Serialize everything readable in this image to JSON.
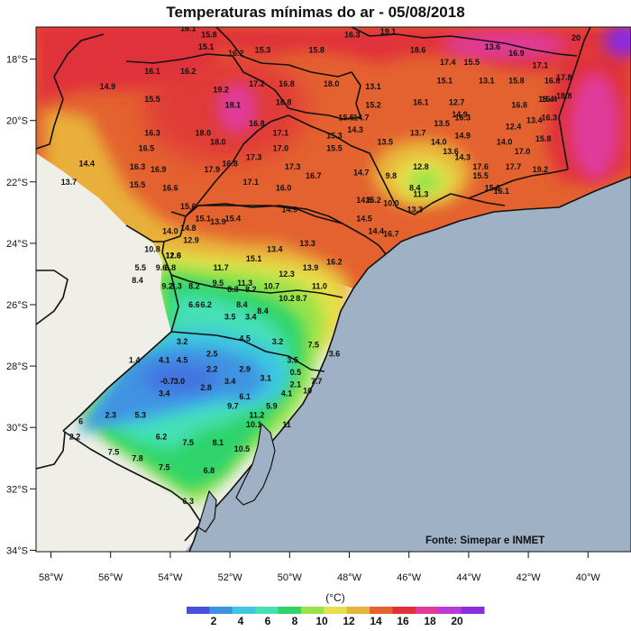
{
  "title": "Temperaturas mínimas do ar - 05/08/2018",
  "credit": "Fonte: Simepar e INMET",
  "unit": "(°C)",
  "colors": {
    "ocean": "#9fb1c5",
    "land_outside": "#efefe8",
    "border": "#111111"
  },
  "x_axis": {
    "ticks": [
      "58°W",
      "56°W",
      "54°W",
      "52°W",
      "50°W",
      "48°W",
      "46°W",
      "44°W",
      "42°W",
      "40°W"
    ]
  },
  "y_axis": {
    "ticks": [
      "18°S",
      "20°S",
      "22°S",
      "24°S",
      "26°S",
      "28°S",
      "30°S",
      "32°S",
      "34°S"
    ]
  },
  "colorbar": {
    "labels": [
      "2",
      "4",
      "6",
      "8",
      "10",
      "12",
      "14",
      "16",
      "18",
      "20"
    ],
    "colors": [
      "#4a4ee0",
      "#3f92e2",
      "#3ec6e2",
      "#45e0b5",
      "#2ed46a",
      "#98e34a",
      "#e6e04a",
      "#e9b43a",
      "#e4622f",
      "#e0303a",
      "#e03a9a",
      "#b93ad6",
      "#8a2ce0"
    ]
  },
  "stations": [
    {
      "v": "16.1",
      "lon": -53.4,
      "lat": -17.0
    },
    {
      "v": "15.8",
      "lon": -52.7,
      "lat": -17.2
    },
    {
      "v": "15.1",
      "lon": -52.8,
      "lat": -17.6
    },
    {
      "v": "16.2",
      "lon": -51.8,
      "lat": -17.8
    },
    {
      "v": "15.3",
      "lon": -50.9,
      "lat": -17.7
    },
    {
      "v": "15.8",
      "lon": -49.1,
      "lat": -17.7
    },
    {
      "v": "16.3",
      "lon": -47.9,
      "lat": -17.2
    },
    {
      "v": "19.1",
      "lon": -46.7,
      "lat": -17.1
    },
    {
      "v": "18.6",
      "lon": -45.7,
      "lat": -17.7
    },
    {
      "v": "13.6",
      "lon": -43.2,
      "lat": -17.6
    },
    {
      "v": "16.9",
      "lon": -42.4,
      "lat": -17.8
    },
    {
      "v": "20",
      "lon": -40.4,
      "lat": -17.3
    },
    {
      "v": "17.4",
      "lon": -44.7,
      "lat": -18.1
    },
    {
      "v": "15.5",
      "lon": -43.9,
      "lat": -18.1
    },
    {
      "v": "17.1",
      "lon": -41.6,
      "lat": -18.2
    },
    {
      "v": "16.1",
      "lon": -54.6,
      "lat": -18.4
    },
    {
      "v": "16.2",
      "lon": -53.4,
      "lat": -18.4
    },
    {
      "v": "17.2",
      "lon": -51.1,
      "lat": -18.8
    },
    {
      "v": "16.8",
      "lon": -50.1,
      "lat": -18.8
    },
    {
      "v": "18.0",
      "lon": -48.6,
      "lat": -18.8
    },
    {
      "v": "13.1",
      "lon": -47.2,
      "lat": -18.9
    },
    {
      "v": "15.1",
      "lon": -44.8,
      "lat": -18.7
    },
    {
      "v": "13.1",
      "lon": -43.4,
      "lat": -18.7
    },
    {
      "v": "15.8",
      "lon": -42.4,
      "lat": -18.7
    },
    {
      "v": "16.8",
      "lon": -41.2,
      "lat": -18.7
    },
    {
      "v": "17.8",
      "lon": -40.8,
      "lat": -18.6
    },
    {
      "v": "14.9",
      "lon": -56.1,
      "lat": -18.9
    },
    {
      "v": "19.2",
      "lon": -52.3,
      "lat": -19.0
    },
    {
      "v": "16.4",
      "lon": -41.3,
      "lat": -19.3
    },
    {
      "v": "18.8",
      "lon": -40.8,
      "lat": -19.2
    },
    {
      "v": "15.5",
      "lon": -54.6,
      "lat": -19.3
    },
    {
      "v": "18.1",
      "lon": -51.9,
      "lat": -19.5
    },
    {
      "v": "16.8",
      "lon": -50.2,
      "lat": -19.4
    },
    {
      "v": "15.2",
      "lon": -47.2,
      "lat": -19.5
    },
    {
      "v": "16.1",
      "lon": -45.6,
      "lat": -19.4
    },
    {
      "v": "12.7",
      "lon": -44.4,
      "lat": -19.4
    },
    {
      "v": "16.8",
      "lon": -42.3,
      "lat": -19.5
    },
    {
      "v": "18.4",
      "lon": -41.4,
      "lat": -19.3
    },
    {
      "v": "14.7",
      "lon": -47.6,
      "lat": -19.9
    },
    {
      "v": "15.5",
      "lon": -48.1,
      "lat": -19.9
    },
    {
      "v": "14.9",
      "lon": -44.3,
      "lat": -19.8
    },
    {
      "v": "16.3",
      "lon": -44.2,
      "lat": -19.9
    },
    {
      "v": "16.3",
      "lon": -41.3,
      "lat": -19.9
    },
    {
      "v": "16.8",
      "lon": -51.1,
      "lat": -20.1
    },
    {
      "v": "13.5",
      "lon": -44.9,
      "lat": -20.1
    },
    {
      "v": "12.4",
      "lon": -42.5,
      "lat": -20.2
    },
    {
      "v": "13.4",
      "lon": -41.8,
      "lat": -20.0
    },
    {
      "v": "14.3",
      "lon": -47.8,
      "lat": -20.3
    },
    {
      "v": "16.3",
      "lon": -54.6,
      "lat": -20.4
    },
    {
      "v": "18.0",
      "lon": -52.9,
      "lat": -20.4
    },
    {
      "v": "17.1",
      "lon": -50.3,
      "lat": -20.4
    },
    {
      "v": "15.3",
      "lon": -48.5,
      "lat": -20.5
    },
    {
      "v": "13.7",
      "lon": -45.7,
      "lat": -20.4
    },
    {
      "v": "14.9",
      "lon": -44.2,
      "lat": -20.5
    },
    {
      "v": "15.8",
      "lon": -41.5,
      "lat": -20.6
    },
    {
      "v": "18.0",
      "lon": -52.4,
      "lat": -20.7
    },
    {
      "v": "13.5",
      "lon": -46.8,
      "lat": -20.7
    },
    {
      "v": "14.0",
      "lon": -45.0,
      "lat": -20.7
    },
    {
      "v": "14.0",
      "lon": -42.8,
      "lat": -20.7
    },
    {
      "v": "16.5",
      "lon": -54.8,
      "lat": -20.9
    },
    {
      "v": "17.0",
      "lon": -50.3,
      "lat": -20.9
    },
    {
      "v": "15.5",
      "lon": -48.5,
      "lat": -20.9
    },
    {
      "v": "13.6",
      "lon": -44.6,
      "lat": -21.0
    },
    {
      "v": "17.0",
      "lon": -42.2,
      "lat": -21.0
    },
    {
      "v": "17.3",
      "lon": -51.2,
      "lat": -21.2
    },
    {
      "v": "14.3",
      "lon": -44.2,
      "lat": -21.2
    },
    {
      "v": "14.4",
      "lon": -56.8,
      "lat": -21.4
    },
    {
      "v": "16.3",
      "lon": -55.1,
      "lat": -21.5
    },
    {
      "v": "16.8",
      "lon": -52.0,
      "lat": -21.4
    },
    {
      "v": "17.3",
      "lon": -49.9,
      "lat": -21.5
    },
    {
      "v": "12.8",
      "lon": -45.6,
      "lat": -21.5
    },
    {
      "v": "17.6",
      "lon": -43.6,
      "lat": -21.5
    },
    {
      "v": "17.7",
      "lon": -42.5,
      "lat": -21.5
    },
    {
      "v": "19.2",
      "lon": -41.6,
      "lat": -21.6
    },
    {
      "v": "16.9",
      "lon": -54.4,
      "lat": -21.6
    },
    {
      "v": "17.9",
      "lon": -52.6,
      "lat": -21.6
    },
    {
      "v": "16.7",
      "lon": -49.2,
      "lat": -21.8
    },
    {
      "v": "14.7",
      "lon": -47.6,
      "lat": -21.7
    },
    {
      "v": "9.8",
      "lon": -46.6,
      "lat": -21.8
    },
    {
      "v": "15.5",
      "lon": -43.6,
      "lat": -21.8
    },
    {
      "v": "13.7",
      "lon": -57.4,
      "lat": -22.0
    },
    {
      "v": "17.1",
      "lon": -51.3,
      "lat": -22.0
    },
    {
      "v": "15.5",
      "lon": -55.1,
      "lat": -22.1
    },
    {
      "v": "16.6",
      "lon": -54.0,
      "lat": -22.2
    },
    {
      "v": "16.0",
      "lon": -50.2,
      "lat": -22.2
    },
    {
      "v": "8.4",
      "lon": -45.8,
      "lat": -22.2
    },
    {
      "v": "15.6",
      "lon": -43.2,
      "lat": -22.2
    },
    {
      "v": "16.1",
      "lon": -42.9,
      "lat": -22.3
    },
    {
      "v": "14.8",
      "lon": -47.5,
      "lat": -22.6
    },
    {
      "v": "15.2",
      "lon": -47.2,
      "lat": -22.6
    },
    {
      "v": "10.0",
      "lon": -46.6,
      "lat": -22.7
    },
    {
      "v": "11.3",
      "lon": -45.6,
      "lat": -22.4
    },
    {
      "v": "15.6",
      "lon": -53.4,
      "lat": -22.8
    },
    {
      "v": "15.1",
      "lon": -52.9,
      "lat": -23.2
    },
    {
      "v": "14.9",
      "lon": -50.0,
      "lat": -22.9
    },
    {
      "v": "13.3",
      "lon": -45.8,
      "lat": -22.9
    },
    {
      "v": "15.4",
      "lon": -51.9,
      "lat": -23.2
    },
    {
      "v": "13.9",
      "lon": -52.4,
      "lat": -23.3
    },
    {
      "v": "14.5",
      "lon": -47.5,
      "lat": -23.2
    },
    {
      "v": "14.4",
      "lon": -47.1,
      "lat": -23.6
    },
    {
      "v": "16.7",
      "lon": -46.6,
      "lat": -23.7
    },
    {
      "v": "14.0",
      "lon": -54.0,
      "lat": -23.6
    },
    {
      "v": "14.8",
      "lon": -53.4,
      "lat": -23.5
    },
    {
      "v": "12.9",
      "lon": -53.3,
      "lat": -23.9
    },
    {
      "v": "13.4",
      "lon": -50.5,
      "lat": -24.2
    },
    {
      "v": "13.3",
      "lon": -49.4,
      "lat": -24.0
    },
    {
      "v": "10.8",
      "lon": -54.6,
      "lat": -24.2
    },
    {
      "v": "11.0",
      "lon": -53.9,
      "lat": -24.4
    },
    {
      "v": "12.6",
      "lon": -53.9,
      "lat": -24.4
    },
    {
      "v": "15.1",
      "lon": -51.2,
      "lat": -24.5
    },
    {
      "v": "16.2",
      "lon": -48.5,
      "lat": -24.6
    },
    {
      "v": "9.6",
      "lon": -54.3,
      "lat": -24.8
    },
    {
      "v": "5.5",
      "lon": -55.0,
      "lat": -24.8
    },
    {
      "v": "6.8",
      "lon": -54.0,
      "lat": -24.8
    },
    {
      "v": "11.7",
      "lon": -52.3,
      "lat": -24.8
    },
    {
      "v": "12.3",
      "lon": -50.1,
      "lat": -25.0
    },
    {
      "v": "13.9",
      "lon": -49.3,
      "lat": -24.8
    },
    {
      "v": "8.4",
      "lon": -55.1,
      "lat": -25.2
    },
    {
      "v": "9.2",
      "lon": -54.1,
      "lat": -25.4
    },
    {
      "v": "3.3",
      "lon": -53.8,
      "lat": -25.4
    },
    {
      "v": "8.2",
      "lon": -53.2,
      "lat": -25.4
    },
    {
      "v": "9.5",
      "lon": -52.4,
      "lat": -25.3
    },
    {
      "v": "11.3",
      "lon": -51.5,
      "lat": -25.3
    },
    {
      "v": "10.7",
      "lon": -50.6,
      "lat": -25.4
    },
    {
      "v": "11.0",
      "lon": -49.0,
      "lat": -25.4
    },
    {
      "v": "8.3",
      "lon": -51.9,
      "lat": -25.5
    },
    {
      "v": "8.2",
      "lon": -51.3,
      "lat": -25.5
    },
    {
      "v": "10.2",
      "lon": -50.1,
      "lat": -25.8
    },
    {
      "v": "8.7",
      "lon": -49.6,
      "lat": -25.8
    },
    {
      "v": "6.6",
      "lon": -53.2,
      "lat": -26.0
    },
    {
      "v": "6.2",
      "lon": -52.8,
      "lat": -26.0
    },
    {
      "v": "8.4",
      "lon": -51.6,
      "lat": -26.0
    },
    {
      "v": "8.4",
      "lon": -50.9,
      "lat": -26.2
    },
    {
      "v": "3.5",
      "lon": -52.0,
      "lat": -26.4
    },
    {
      "v": "3.4",
      "lon": -51.3,
      "lat": -26.4
    },
    {
      "v": "4.5",
      "lon": -51.5,
      "lat": -27.1
    },
    {
      "v": "3.2",
      "lon": -53.6,
      "lat": -27.2
    },
    {
      "v": "3.2",
      "lon": -50.4,
      "lat": -27.2
    },
    {
      "v": "7.5",
      "lon": -49.2,
      "lat": -27.3
    },
    {
      "v": "2.5",
      "lon": -52.6,
      "lat": -27.6
    },
    {
      "v": "3.6",
      "lon": -48.5,
      "lat": -27.6
    },
    {
      "v": "1.4",
      "lon": -55.2,
      "lat": -27.8
    },
    {
      "v": "4.1",
      "lon": -54.2,
      "lat": -27.8
    },
    {
      "v": "4.5",
      "lon": -53.6,
      "lat": -27.8
    },
    {
      "v": "3.5",
      "lon": -49.9,
      "lat": -27.8
    },
    {
      "v": "2.2",
      "lon": -52.6,
      "lat": -28.1
    },
    {
      "v": "2.9",
      "lon": -51.5,
      "lat": -28.1
    },
    {
      "v": "0.5",
      "lon": -49.8,
      "lat": -28.2
    },
    {
      "v": "-0.7",
      "lon": -54.1,
      "lat": -28.5
    },
    {
      "v": "3.0",
      "lon": -53.7,
      "lat": -28.5
    },
    {
      "v": "3.4",
      "lon": -52.0,
      "lat": -28.5
    },
    {
      "v": "3.1",
      "lon": -50.8,
      "lat": -28.4
    },
    {
      "v": "7.7",
      "lon": -49.1,
      "lat": -28.5
    },
    {
      "v": "2.8",
      "lon": -52.8,
      "lat": -28.7
    },
    {
      "v": "2.1",
      "lon": -49.8,
      "lat": -28.6
    },
    {
      "v": "10",
      "lon": -49.4,
      "lat": -28.8
    },
    {
      "v": "3.4",
      "lon": -54.2,
      "lat": -28.9
    },
    {
      "v": "6.1",
      "lon": -51.5,
      "lat": -29.0
    },
    {
      "v": "4.1",
      "lon": -50.1,
      "lat": -28.9
    },
    {
      "v": "9.7",
      "lon": -51.9,
      "lat": -29.3
    },
    {
      "v": "5.9",
      "lon": -50.6,
      "lat": -29.3
    },
    {
      "v": "2.3",
      "lon": -56.0,
      "lat": -29.6
    },
    {
      "v": "5.3",
      "lon": -55.0,
      "lat": -29.6
    },
    {
      "v": "11.2",
      "lon": -51.1,
      "lat": -29.6
    },
    {
      "v": "6",
      "lon": -57.0,
      "lat": -29.8
    },
    {
      "v": "10.1",
      "lon": -51.2,
      "lat": -29.9
    },
    {
      "v": "11",
      "lon": -50.1,
      "lat": -29.9
    },
    {
      "v": "6.2",
      "lon": -54.3,
      "lat": -30.3
    },
    {
      "v": "2.2",
      "lon": -57.2,
      "lat": -30.3
    },
    {
      "v": "7.5",
      "lon": -53.4,
      "lat": -30.5
    },
    {
      "v": "8.1",
      "lon": -52.4,
      "lat": -30.5
    },
    {
      "v": "10.5",
      "lon": -51.6,
      "lat": -30.7
    },
    {
      "v": "7.5",
      "lon": -55.9,
      "lat": -30.8
    },
    {
      "v": "7.8",
      "lon": -55.1,
      "lat": -31.0
    },
    {
      "v": "7.5",
      "lon": -54.2,
      "lat": -31.3
    },
    {
      "v": "6.8",
      "lon": -52.7,
      "lat": -31.4
    },
    {
      "v": "6.3",
      "lon": -53.4,
      "lat": -32.4
    }
  ]
}
